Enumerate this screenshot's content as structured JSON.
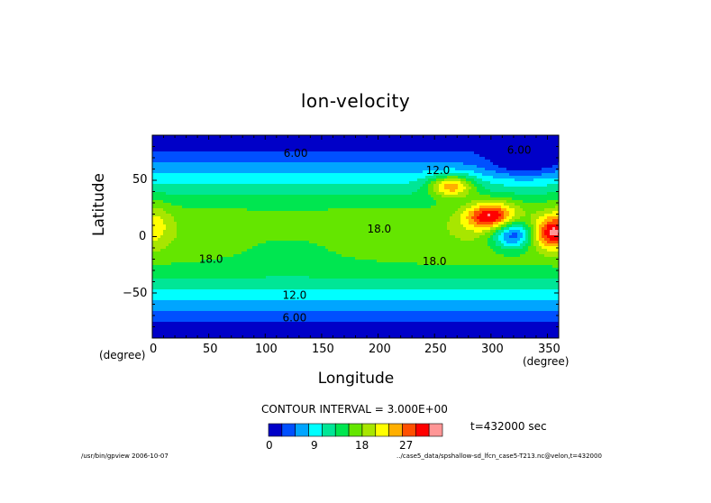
{
  "chart_data": {
    "type": "heatmap",
    "title": "lon-velocity",
    "xlabel": "Longitude",
    "ylabel": "Latitude",
    "x_unit": "(degree)",
    "y_unit": "(degree)",
    "xlim": [
      0,
      360
    ],
    "ylim": [
      -90,
      90
    ],
    "x_ticks": [
      "0",
      "50",
      "100",
      "150",
      "200",
      "250",
      "300",
      "350"
    ],
    "y_ticks": [
      "50",
      "0",
      "−50"
    ],
    "contour_interval": "CONTOUR INTERVAL = 3.000E+00",
    "time_label": "t=432000 sec",
    "colorbar_ticks": [
      "0",
      "9",
      "18",
      "27"
    ],
    "levels": [
      -3,
      0,
      3,
      6,
      9,
      12,
      15,
      18,
      21,
      24,
      27,
      30,
      33
    ],
    "colors": [
      "#0000c8",
      "#0050ff",
      "#00a5ff",
      "#00ffff",
      "#00e696",
      "#00e650",
      "#64e600",
      "#a8e600",
      "#ffff00",
      "#ffaf00",
      "#ff5000",
      "#ff0000",
      "#ff9696"
    ],
    "contour_labels": [
      {
        "text": "6.00",
        "lon": 127,
        "lat": 74
      },
      {
        "text": "6.00",
        "lon": 325,
        "lat": 77
      },
      {
        "text": "12.0",
        "lon": 253,
        "lat": 59
      },
      {
        "text": "18.0",
        "lon": 201,
        "lat": 7
      },
      {
        "text": "18.0",
        "lon": 52,
        "lat": -20
      },
      {
        "text": "18.0",
        "lon": 250,
        "lat": -22
      },
      {
        "text": "12.0",
        "lon": 126,
        "lat": -52
      },
      {
        "text": "6.00",
        "lon": 126,
        "lat": -72
      }
    ]
  },
  "footer": {
    "left": "/usr/bin/gpview  2006-10-07",
    "right": "../case5_data/spshallow-sd_lfcn_case5-T213.nc@velon,t=432000"
  }
}
